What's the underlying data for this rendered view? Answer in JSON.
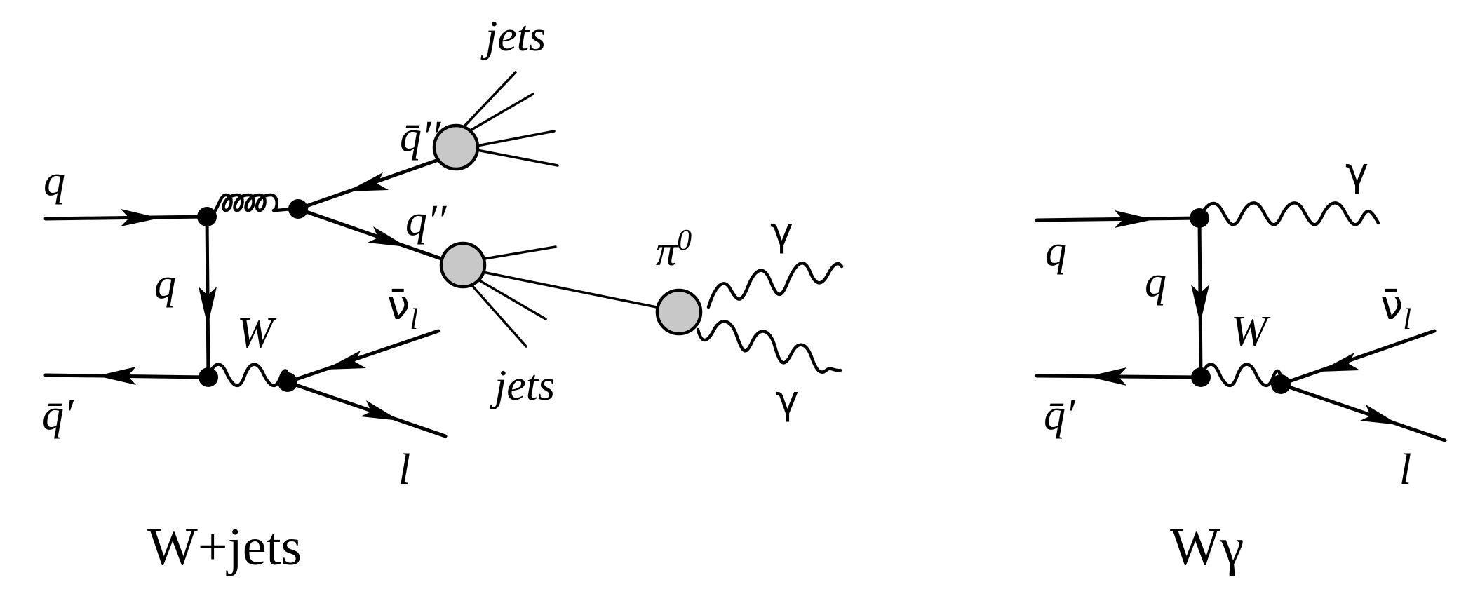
{
  "diagrams": [
    {
      "caption": "W+jets",
      "labels": {
        "q_in": "q",
        "qbar_prime": "q̄′",
        "q_prop": "q",
        "W": "W",
        "nubar": "ν̄",
        "nubar_sub": "l",
        "lepton": "l",
        "qbar_dprime": "q̄′′",
        "q_dprime": "q′′",
        "jets_top": "jets",
        "jets_bottom": "jets",
        "pi0": "π",
        "pi0_sup": "0",
        "gamma1": "γ",
        "gamma2": "γ"
      }
    },
    {
      "caption": "Wγ",
      "labels": {
        "q_in": "q",
        "qbar_prime": "q̄′",
        "q_prop": "q",
        "W": "W",
        "nubar": "ν̄",
        "nubar_sub": "l",
        "lepton": "l",
        "gamma": "γ"
      }
    }
  ]
}
